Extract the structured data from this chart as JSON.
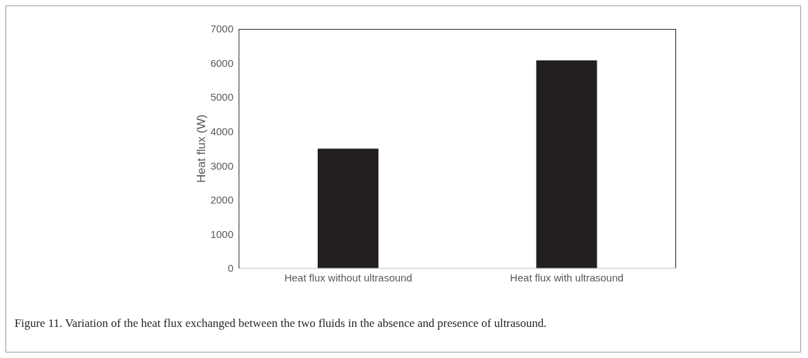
{
  "chart_data": {
    "type": "bar",
    "ylabel": "Heat flux (W)",
    "categories": [
      "Heat flux without ultrasound",
      "Heat flux with ultrasound"
    ],
    "values": [
      3500,
      6080
    ],
    "color": "#231f20",
    "ylim": [
      0,
      7000
    ],
    "yticks": [
      0,
      1000,
      2000,
      3000,
      4000,
      5000,
      6000,
      7000
    ],
    "grid": false,
    "annotations": [
      "Figure 11. Variation of the heat flux exchanged between the two fluids in the absence and presence of ultrasound."
    ]
  }
}
